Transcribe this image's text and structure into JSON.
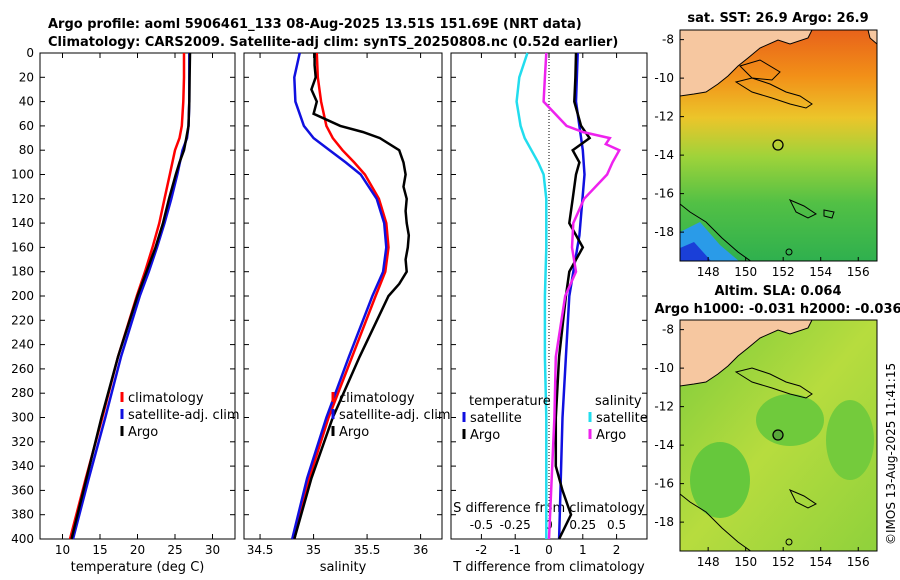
{
  "figure": {
    "title_line1": "Argo profile: aoml 5906461_133 08-Aug-2025 13.51S 151.69E (NRT data)",
    "title_line2": "Climatology: CARS2009. Satellite-adj clim: synTS_20250808.nc (0.52d earlier)",
    "timestamp": "©IMOS 13-Aug-2025 11:41:15"
  },
  "colors": {
    "climatology": "#ff0000",
    "satellite": "#1010e0",
    "argo": "#000000",
    "salinity_diff": "#ee22ee",
    "salinity_sat": "#22ddee",
    "land": "#f6c7a0"
  },
  "chart_data": [
    {
      "type": "line",
      "title": "",
      "xlabel": "temperature (deg C)",
      "ylabel": "",
      "xlim": [
        7,
        33
      ],
      "ylim": [
        400,
        0
      ],
      "xticks": [
        "10",
        "15",
        "20",
        "25",
        "30"
      ],
      "yticks": [
        "0",
        "20",
        "40",
        "60",
        "80",
        "100",
        "120",
        "140",
        "160",
        "180",
        "200",
        "220",
        "240",
        "260",
        "280",
        "300",
        "320",
        "340",
        "360",
        "380",
        "400"
      ],
      "legend": [
        "climatology",
        "satellite-adj. clim",
        "Argo"
      ],
      "series": [
        {
          "name": "climatology",
          "depth": [
            0,
            20,
            40,
            60,
            70,
            80,
            100,
            120,
            140,
            160,
            180,
            200,
            250,
            300,
            350,
            400
          ],
          "values": [
            26.2,
            26.2,
            26.1,
            25.9,
            25.6,
            25.0,
            24.3,
            23.6,
            22.9,
            22.0,
            21.0,
            19.9,
            17.4,
            15.3,
            13.1,
            11.0
          ]
        },
        {
          "name": "satellite-adj. clim",
          "depth": [
            0,
            20,
            40,
            60,
            70,
            80,
            100,
            120,
            140,
            160,
            180,
            200,
            250,
            300,
            350,
            400
          ],
          "values": [
            26.9,
            26.9,
            26.9,
            26.8,
            26.6,
            26.0,
            25.3,
            24.5,
            23.6,
            22.6,
            21.5,
            20.3,
            17.8,
            15.7,
            13.5,
            11.4
          ]
        },
        {
          "name": "Argo",
          "depth": [
            0,
            20,
            40,
            60,
            70,
            80,
            90,
            100,
            120,
            140,
            160,
            180,
            200,
            250,
            300,
            350,
            400
          ],
          "values": [
            27.0,
            26.95,
            26.9,
            26.8,
            26.5,
            26.2,
            25.6,
            25.1,
            24.2,
            23.4,
            22.4,
            21.2,
            20.0,
            17.4,
            15.2,
            13.2,
            11.2
          ]
        }
      ]
    },
    {
      "type": "line",
      "title": "",
      "xlabel": "salinity",
      "ylabel": "",
      "xlim": [
        34.35,
        36.2
      ],
      "ylim": [
        400,
        0
      ],
      "xticks": [
        "34.5",
        "35",
        "35.5",
        "36"
      ],
      "legend": [
        "climatology",
        "satellite-adj. clim",
        "Argo"
      ],
      "series": [
        {
          "name": "climatology",
          "depth": [
            0,
            20,
            40,
            60,
            70,
            80,
            90,
            100,
            120,
            140,
            160,
            180,
            200,
            250,
            300,
            350,
            400
          ],
          "values": [
            35.03,
            35.04,
            35.07,
            35.12,
            35.18,
            35.27,
            35.38,
            35.48,
            35.61,
            35.68,
            35.7,
            35.67,
            35.58,
            35.36,
            35.14,
            34.96,
            34.82
          ]
        },
        {
          "name": "satellite-adj. clim",
          "depth": [
            0,
            20,
            40,
            60,
            70,
            80,
            90,
            100,
            120,
            140,
            160,
            180,
            200,
            250,
            300,
            350,
            400
          ],
          "values": [
            34.87,
            34.82,
            34.83,
            34.91,
            35.0,
            35.15,
            35.3,
            35.44,
            35.59,
            35.66,
            35.68,
            35.65,
            35.55,
            35.33,
            35.12,
            34.94,
            34.8
          ]
        },
        {
          "name": "Argo",
          "depth": [
            0,
            10,
            20,
            30,
            40,
            50,
            60,
            65,
            70,
            80,
            90,
            100,
            110,
            120,
            130,
            140,
            150,
            160,
            170,
            180,
            190,
            200,
            250,
            300,
            350,
            400
          ],
          "values": [
            35.01,
            35.01,
            35.02,
            34.98,
            35.03,
            35.0,
            35.25,
            35.46,
            35.62,
            35.8,
            35.84,
            35.86,
            35.84,
            35.87,
            35.86,
            35.87,
            35.89,
            35.88,
            35.86,
            35.87,
            35.8,
            35.7,
            35.43,
            35.18,
            34.98,
            34.82
          ]
        }
      ]
    },
    {
      "type": "line",
      "title": "",
      "xlabel": "T difference from climatology",
      "xlabel_top": "S difference from climatology",
      "xlim": [
        -2.9,
        2.9
      ],
      "ylim": [
        400,
        0
      ],
      "xticks": [
        "-2",
        "-1",
        "0",
        "1",
        "2"
      ],
      "xticks_salinity": [
        "-0.5",
        "-0.25",
        "0",
        "0.25",
        "0.5"
      ],
      "legend_temperature_title": "temperature",
      "legend_salinity_title": "salinity",
      "legend": [
        "satellite",
        "Argo",
        "satellite",
        "Argo"
      ],
      "series": [
        {
          "name": "temperature satellite",
          "depth": [
            0,
            40,
            60,
            80,
            100,
            150,
            200,
            250,
            300,
            350,
            400
          ],
          "values": [
            0.85,
            0.8,
            0.9,
            1.0,
            1.05,
            0.9,
            0.6,
            0.5,
            0.4,
            0.35,
            0.3
          ]
        },
        {
          "name": "temperature Argo",
          "depth": [
            0,
            20,
            40,
            60,
            70,
            80,
            90,
            100,
            120,
            140,
            160,
            180,
            200,
            250,
            300,
            340,
            360,
            380,
            400
          ],
          "values": [
            0.8,
            0.78,
            0.75,
            0.95,
            1.2,
            0.7,
            0.9,
            0.8,
            0.7,
            0.6,
            1.0,
            0.6,
            0.5,
            0.3,
            0.2,
            0.2,
            0.4,
            0.65,
            0.3
          ]
        },
        {
          "name": "salinity satellite",
          "depth": [
            0,
            20,
            40,
            60,
            70,
            80,
            90,
            100,
            120,
            140,
            160,
            200,
            250,
            300,
            350,
            400
          ],
          "values": [
            -0.16,
            -0.22,
            -0.24,
            -0.21,
            -0.18,
            -0.13,
            -0.08,
            -0.04,
            -0.02,
            -0.02,
            -0.02,
            -0.03,
            -0.03,
            -0.02,
            -0.02,
            -0.02
          ]
        },
        {
          "name": "salinity Argo",
          "depth": [
            0,
            20,
            40,
            60,
            65,
            70,
            75,
            80,
            90,
            100,
            120,
            140,
            160,
            180,
            200,
            250,
            300,
            350,
            400
          ],
          "values": [
            -0.02,
            -0.03,
            -0.04,
            0.13,
            0.25,
            0.45,
            0.42,
            0.52,
            0.47,
            0.43,
            0.26,
            0.18,
            0.17,
            0.2,
            0.12,
            0.05,
            0.04,
            0.02,
            0.0
          ]
        }
      ]
    },
    {
      "type": "heatmap",
      "title": "sat. SST: 26.9 Argo: 26.9",
      "xlim": [
        146.5,
        157
      ],
      "ylim": [
        -19.5,
        -7.5
      ],
      "xticks": [
        "148",
        "150",
        "152",
        "154",
        "156"
      ],
      "yticks": [
        "-8",
        "-10",
        "-12",
        "-14",
        "-16",
        "-18"
      ],
      "marker": {
        "lon": 151.69,
        "lat": -13.51
      }
    },
    {
      "type": "heatmap",
      "title": "Altim. SLA: 0.064",
      "subtitle": "Argo h1000: -0.031 h2000: -0.036",
      "xlim": [
        146.5,
        157
      ],
      "ylim": [
        -19.5,
        -7.5
      ],
      "xticks": [
        "148",
        "150",
        "152",
        "154",
        "156"
      ],
      "yticks": [
        "-8",
        "-10",
        "-12",
        "-14",
        "-16",
        "-18"
      ],
      "marker": {
        "lon": 151.69,
        "lat": -13.51
      }
    }
  ]
}
